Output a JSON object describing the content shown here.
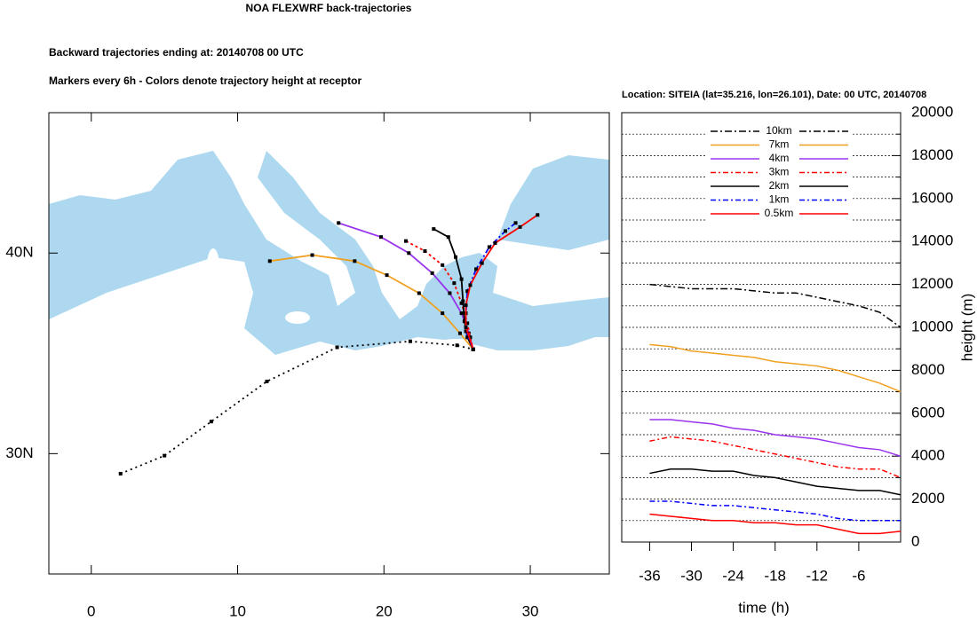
{
  "chart_data": [
    {
      "type": "trajectory",
      "title": "NOA FLEXWRF back-trajectories",
      "subtitle": "Backward trajectories ending at: 20140708  00 UTC",
      "annotation": "Markers every 6h - Colors denote trajectory height at receptor",
      "xlim": [
        -2.9,
        35.4
      ],
      "ylim": [
        24,
        47
      ],
      "xticks": [
        0,
        10,
        20,
        30
      ],
      "yticks": [
        {
          "value": 30,
          "label": "30N"
        },
        {
          "value": 40,
          "label": "40N"
        }
      ],
      "sea_color": "#add8ef",
      "marker_color": "#000000",
      "series": [
        {
          "color": "#000000",
          "dash": "2,4",
          "x": [
            2,
            5,
            8.2,
            12,
            16.8,
            21.8,
            25,
            26.1
          ],
          "values": [
            29.0,
            29.9,
            31.6,
            33.6,
            35.3,
            35.6,
            35.4,
            35.2
          ]
        },
        {
          "color": "#f0a020",
          "dash": "none",
          "x": [
            12.2,
            15.1,
            18,
            20.2,
            22.4,
            24,
            25.2,
            26.1
          ],
          "values": [
            39.6,
            39.9,
            39.6,
            38.9,
            38.0,
            37.0,
            36.0,
            35.2
          ]
        },
        {
          "color": "#9933ee",
          "dash": "none",
          "x": [
            16.9,
            19.8,
            21.7,
            23.3,
            24.5,
            25.3,
            25.8,
            26.1
          ],
          "values": [
            41.5,
            40.8,
            40.0,
            39.0,
            38.0,
            37.0,
            36.0,
            35.2
          ]
        },
        {
          "color": "#ff0000",
          "dash": "3,3",
          "x": [
            21.5,
            22.8,
            24,
            24.8,
            25.3,
            25.7,
            25.9,
            26.1
          ],
          "values": [
            40.6,
            40.1,
            39.4,
            38.5,
            37.5,
            36.5,
            35.8,
            35.2
          ]
        },
        {
          "color": "#000000",
          "dash": "none",
          "x": [
            23.4,
            24.4,
            24.9,
            25.3,
            25.4,
            25.5,
            25.7,
            26.1
          ],
          "values": [
            41.2,
            40.8,
            39.8,
            38.7,
            37.6,
            36.6,
            35.8,
            35.2
          ]
        },
        {
          "color": "#0000ff",
          "dash": "6,3,2,3",
          "x": [
            29,
            28.3,
            27.2,
            26.3,
            25.7,
            25.6,
            25.6,
            26.1
          ],
          "values": [
            41.5,
            41.1,
            40.3,
            39.2,
            38.1,
            37.0,
            36.1,
            35.2
          ]
        },
        {
          "color": "#ff0000",
          "dash": "none",
          "x": [
            30.5,
            29.3,
            27.6,
            26.7,
            25.9,
            25.6,
            25.6,
            26.1
          ],
          "values": [
            41.9,
            41.3,
            40.5,
            39.5,
            38.4,
            37.4,
            36.3,
            35.2
          ]
        }
      ]
    },
    {
      "type": "line",
      "title": "Location: SITEIA (lat=35.216,  lon=26.101), Date: 00 UTC, 20140708",
      "xlabel": "time (h)",
      "ylabel": "height (m)",
      "xlim": [
        -40,
        0
      ],
      "ylim": [
        0,
        20000
      ],
      "xticks": [
        -36,
        -30,
        -24,
        -18,
        -12,
        -6
      ],
      "yticks": [
        0,
        2000,
        4000,
        6000,
        8000,
        10000,
        12000,
        14000,
        16000,
        18000,
        20000
      ],
      "y_minor_ticks": [
        1000,
        3000,
        5000,
        7000,
        9000,
        11000,
        13000,
        15000,
        17000,
        19000
      ],
      "grid": true,
      "x": [
        -36,
        -33,
        -30,
        -27,
        -24,
        -21,
        -18,
        -15,
        -12,
        -9,
        -6,
        -3,
        0
      ],
      "series": [
        {
          "name": "10km",
          "color": "#000000",
          "dash": "8,3,2,3",
          "values": [
            12000,
            11900,
            11800,
            11800,
            11800,
            11700,
            11600,
            11600,
            11400,
            11200,
            11000,
            10700,
            10000
          ]
        },
        {
          "name": "7km",
          "color": "#f0a020",
          "dash": "none",
          "values": [
            9200,
            9100,
            8900,
            8800,
            8700,
            8600,
            8400,
            8300,
            8200,
            8000,
            7700,
            7400,
            7000
          ]
        },
        {
          "name": "4km",
          "color": "#9933ee",
          "dash": "none",
          "values": [
            5700,
            5700,
            5600,
            5500,
            5300,
            5200,
            5000,
            4900,
            4800,
            4600,
            4400,
            4300,
            4000
          ]
        },
        {
          "name": "3km",
          "color": "#ff0000",
          "dash": "6,3,2,3",
          "values": [
            4700,
            4900,
            4800,
            4700,
            4500,
            4300,
            4100,
            3900,
            3700,
            3500,
            3400,
            3400,
            3000
          ]
        },
        {
          "name": "2km",
          "color": "#000000",
          "dash": "none",
          "values": [
            3200,
            3400,
            3400,
            3300,
            3300,
            3100,
            3000,
            2800,
            2600,
            2500,
            2400,
            2400,
            2200
          ]
        },
        {
          "name": "1km",
          "color": "#0000ff",
          "dash": "6,3,2,3",
          "values": [
            1900,
            1900,
            1800,
            1700,
            1700,
            1600,
            1500,
            1400,
            1300,
            1100,
            1000,
            1000,
            1000
          ]
        },
        {
          "name": "0.5km",
          "color": "#ff0000",
          "dash": "none",
          "values": [
            1300,
            1200,
            1100,
            1000,
            1000,
            900,
            900,
            800,
            800,
            600,
            400,
            400,
            500
          ]
        }
      ]
    }
  ]
}
